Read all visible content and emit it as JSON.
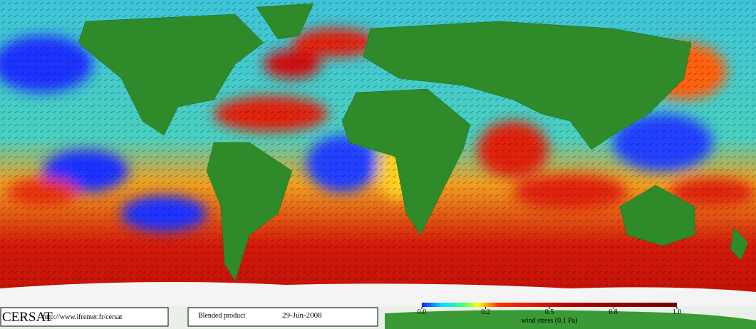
{
  "footer": {
    "logo": "CERSAT",
    "url": "http://www.ifremer.fr/cersat",
    "product": "Blended product",
    "date": "29-Jun-2008"
  },
  "colorbar": {
    "label": "wind stress (0.1 Pa)",
    "ticks": [
      {
        "value": 0,
        "label": "0.0"
      },
      0.2,
      0.5,
      0.8,
      {
        "value": 1,
        "label": "1.0"
      }
    ]
  }
}
